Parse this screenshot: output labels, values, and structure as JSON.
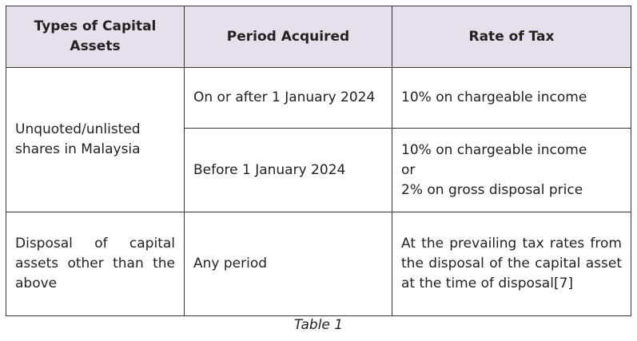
{
  "table": {
    "headers": [
      "Types of Capital Assets",
      "Period Acquired",
      "Rate of Tax"
    ],
    "rows": [
      {
        "asset": "Unquoted/unlisted shares in Malaysia",
        "periods": [
          {
            "period": "On or after 1 January 2024",
            "rate": [
              "10% on chargeable income"
            ]
          },
          {
            "period": "Before 1 January 2024",
            "rate": [
              "10% on chargeable income",
              "or",
              "2% on gross disposal price"
            ]
          }
        ]
      },
      {
        "asset": "Disposal of capital assets other than the above",
        "periods": [
          {
            "period": "Any period",
            "rate": [
              "At the prevailing tax rates from the disposal of the capital asset at the time of disposal[7]"
            ]
          }
        ]
      }
    ]
  },
  "caption": "Table 1",
  "colors": {
    "header_bg": "#e6e0ec",
    "border": "#333333"
  }
}
